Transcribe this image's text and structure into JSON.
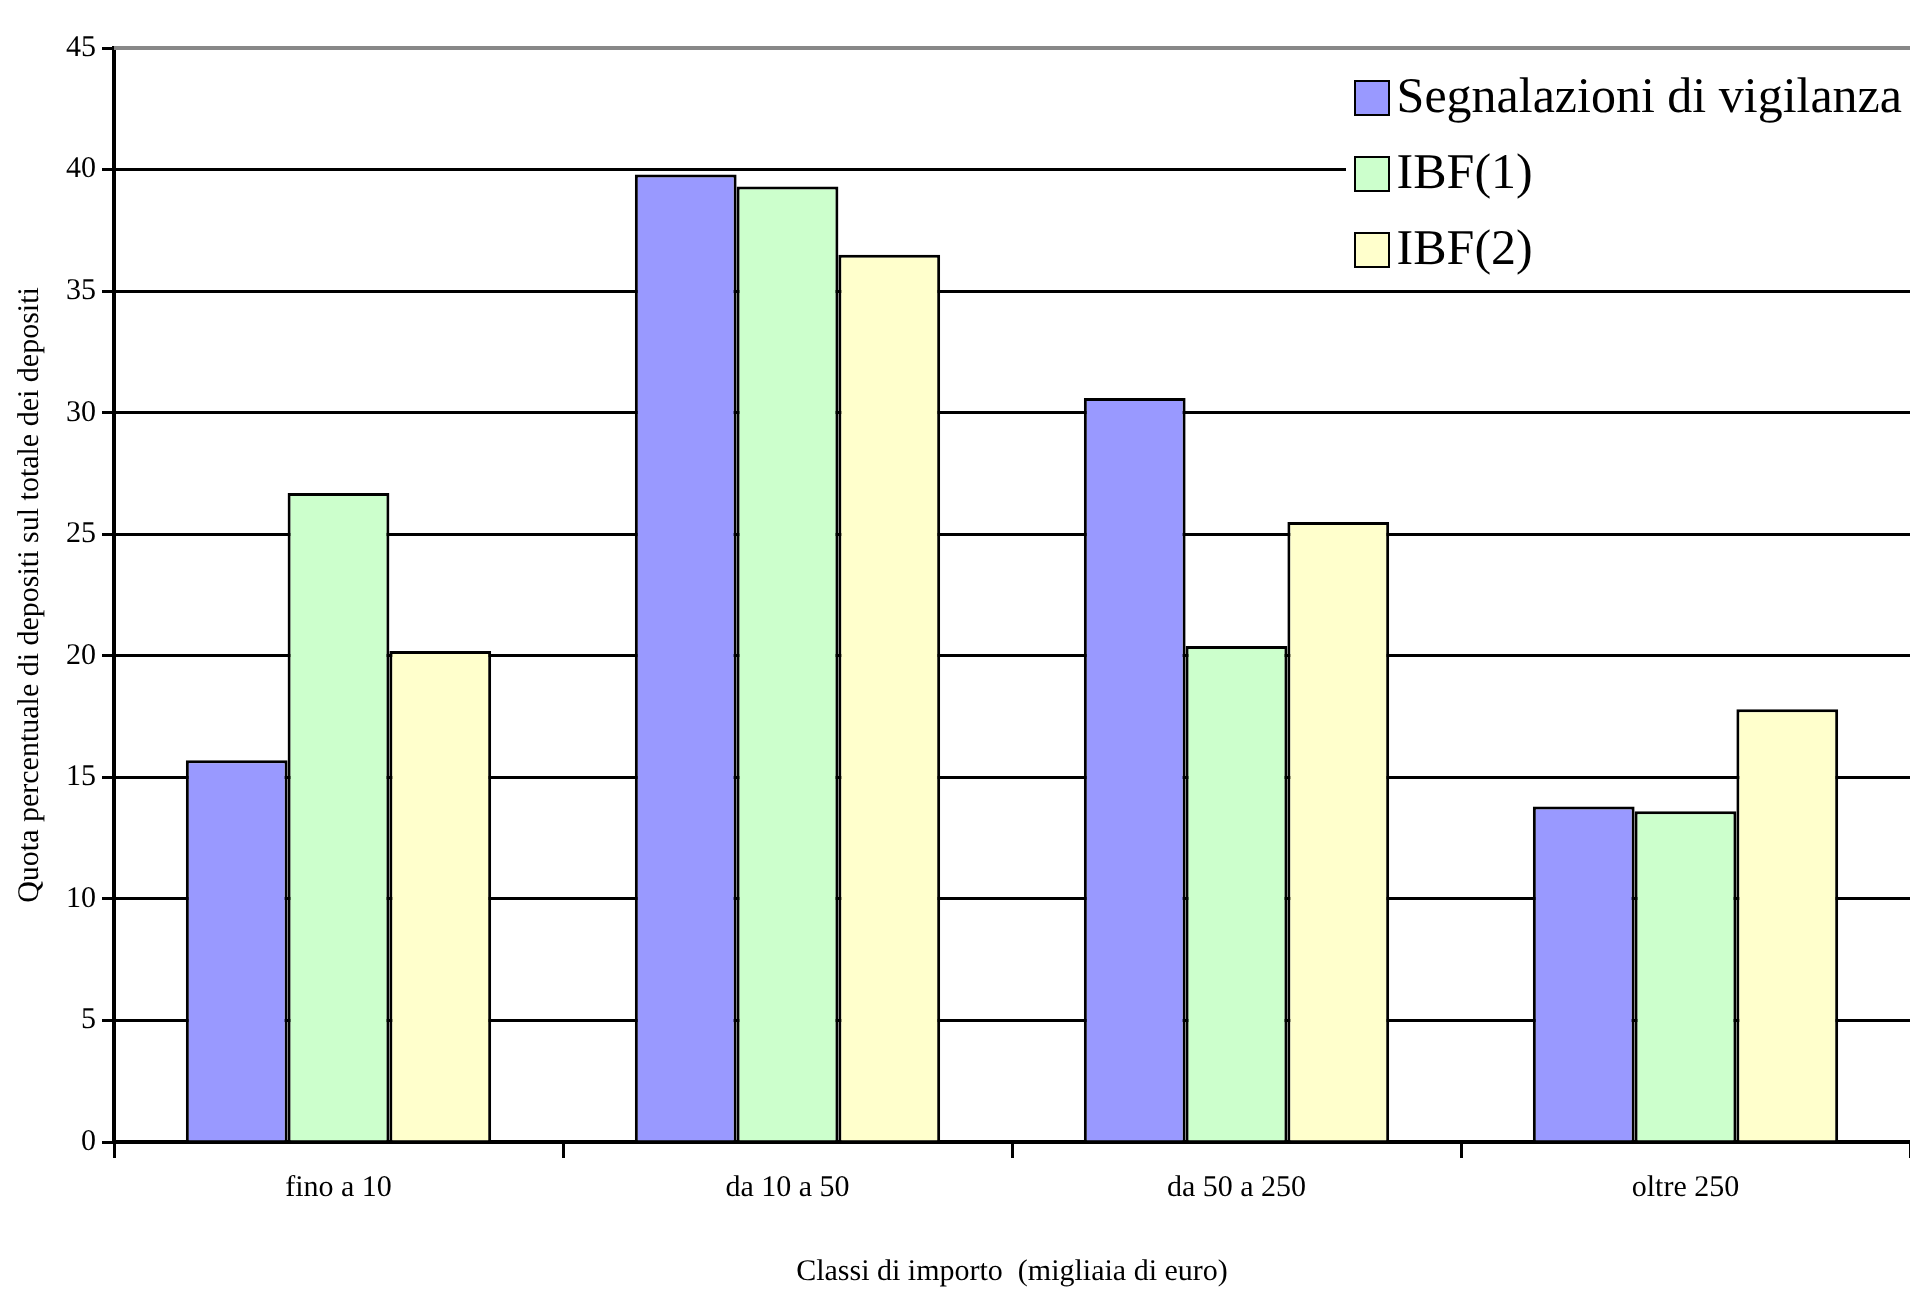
{
  "chart_data": {
    "type": "bar",
    "xlabel": "Classi di importo  (migliaia di euro)",
    "ylabel": "Quota percentuale di depositi sul totale dei depositi",
    "categories": [
      "fino a 10",
      "da 10 a 50",
      "da 50 a 250",
      "oltre 250"
    ],
    "series": [
      {
        "name": "Segnalazioni di vigilanza",
        "color": "#9999ff",
        "values": [
          15.7,
          39.8,
          30.6,
          13.8
        ]
      },
      {
        "name": "IBF(1)",
        "color": "#ccffcc",
        "values": [
          26.7,
          39.3,
          20.4,
          13.6
        ]
      },
      {
        "name": "IBF(2)",
        "color": "#ffffcc",
        "values": [
          20.2,
          36.5,
          25.5,
          17.8
        ]
      }
    ],
    "ylim": [
      0,
      45
    ],
    "yticks": [
      0,
      5,
      10,
      15,
      20,
      25,
      30,
      35,
      40,
      45
    ],
    "grid": "y",
    "legend": "top right"
  }
}
